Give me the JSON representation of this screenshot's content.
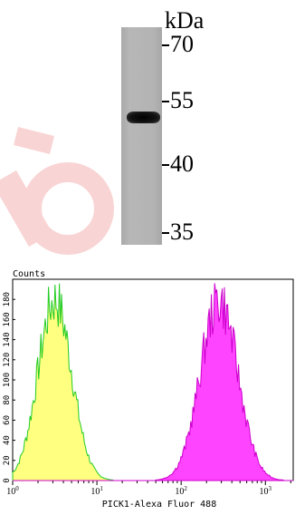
{
  "western_blot": {
    "unit_label": "kDa",
    "markers": [
      "70",
      "55",
      "40",
      "35"
    ],
    "band_position_kda": 52
  },
  "histogram": {
    "y_label": "Counts",
    "x_label": "PICK1-Alexa Fluor 488",
    "y_ticks": [
      "0",
      "20",
      "40",
      "60",
      "80",
      "100",
      "120",
      "140",
      "160",
      "180"
    ],
    "x_tick_exponents": [
      "0",
      "1",
      "2",
      "3"
    ],
    "x_tick_base": "10",
    "ymax": 200,
    "colors": {
      "control_fill": "#ffff80",
      "control_line": "#22cc22",
      "sample_fill": "#ff44ff",
      "sample_line": "#cc00cc"
    }
  }
}
